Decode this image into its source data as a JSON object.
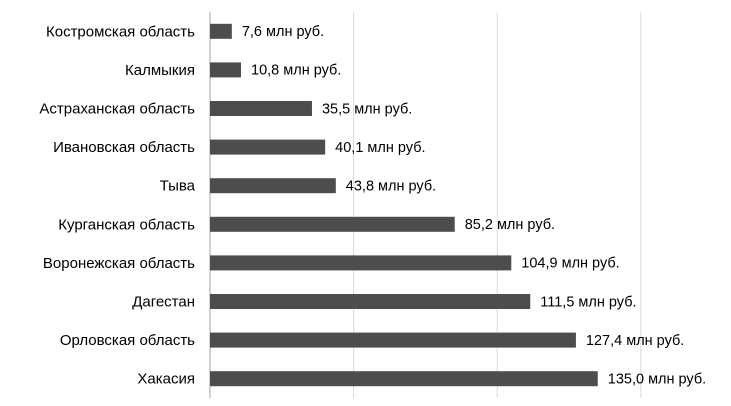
{
  "chart_data": {
    "type": "bar",
    "orientation": "horizontal",
    "categories": [
      "Костромская область",
      "Калмыкия",
      "Астраханская область",
      "Ивановская область",
      "Тыва",
      "Курганская область",
      "Воронежская область",
      "Дагестан",
      "Орловская область",
      "Хакасия"
    ],
    "values": [
      7.6,
      10.8,
      35.5,
      40.1,
      43.8,
      85.2,
      104.9,
      111.5,
      127.4,
      135.0
    ],
    "value_labels": [
      "7,6 млн руб.",
      "10,8 млн руб.",
      "35,5 млн руб.",
      "40,1 млн руб.",
      "43,8 млн руб.",
      "85,2 млн руб.",
      "104,9 млн руб.",
      "111,5 млн руб.",
      "127,4 млн руб.",
      "135,0 млн руб."
    ],
    "color": "#4d4d4d",
    "xlim": [
      0,
      180
    ],
    "xticks": [
      0,
      50,
      100,
      150
    ],
    "grid": true,
    "tick_labels": false
  }
}
